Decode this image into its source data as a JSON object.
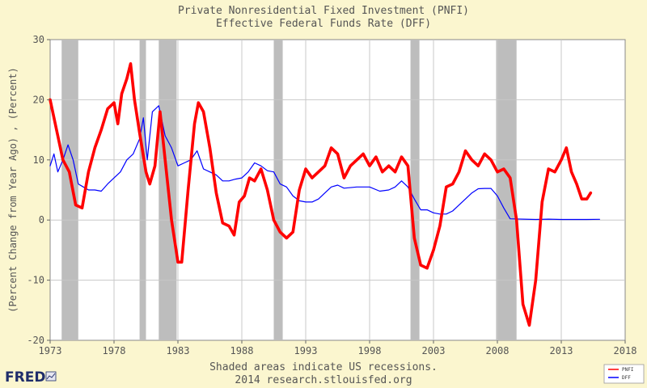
{
  "colors": {
    "background": "#fbf6cf",
    "plot_background": "#ffffff",
    "grid": "#c8c8c8",
    "recession": "#bdbdbd",
    "series_pnfi": "#ff0000",
    "series_dff": "#0000ff"
  },
  "footer": {
    "line1": "Shaded areas indicate US recessions.",
    "line2": "2014 research.stlouisfed.org"
  },
  "logo": {
    "text": "FRED",
    "icon": "chart-icon"
  },
  "chart_data": {
    "type": "line",
    "title": "Private Nonresidential Fixed Investment (PNFI)",
    "subtitle": "Effective Federal Funds Rate (DFF)",
    "xlabel": "",
    "ylabel": "(Percent Change from Year Ago) , (Percent)",
    "xlim": [
      1973,
      2018
    ],
    "ylim": [
      -20,
      30
    ],
    "xticks": [
      1973,
      1978,
      1983,
      1988,
      1993,
      1998,
      2003,
      2008,
      2013,
      2018
    ],
    "xtick_labels": [
      "1973",
      "1978",
      "1983",
      "1988",
      "1993",
      "1998",
      "2003",
      "2008",
      "2013",
      "2018"
    ],
    "yticks": [
      -20,
      -10,
      0,
      10,
      20,
      30
    ],
    "ytick_labels": [
      "-20",
      "-10",
      "0",
      "10",
      "20",
      "30"
    ],
    "grid": true,
    "legend": {
      "position": "bottom-right",
      "entries": [
        "PNFI",
        "DFF"
      ]
    },
    "recessions": [
      [
        1973.9,
        1975.2
      ],
      [
        1980.0,
        1980.5
      ],
      [
        1981.5,
        1982.9
      ],
      [
        1990.5,
        1991.2
      ],
      [
        2001.2,
        2001.9
      ],
      [
        2007.9,
        2009.5
      ]
    ],
    "series": [
      {
        "name": "PNFI",
        "color": "#ff0000",
        "points": [
          [
            1973.0,
            20
          ],
          [
            1973.5,
            15
          ],
          [
            1974.0,
            10
          ],
          [
            1974.5,
            8
          ],
          [
            1975.0,
            2.5
          ],
          [
            1975.5,
            2
          ],
          [
            1976.0,
            8
          ],
          [
            1976.5,
            12
          ],
          [
            1977.0,
            15
          ],
          [
            1977.5,
            18.5
          ],
          [
            1978.0,
            19.5
          ],
          [
            1978.3,
            16
          ],
          [
            1978.6,
            21
          ],
          [
            1979.0,
            23.5
          ],
          [
            1979.3,
            26
          ],
          [
            1979.6,
            20
          ],
          [
            1980.0,
            14.5
          ],
          [
            1980.5,
            8
          ],
          [
            1980.8,
            6
          ],
          [
            1981.2,
            9
          ],
          [
            1981.6,
            18
          ],
          [
            1982.0,
            10
          ],
          [
            1982.5,
            0
          ],
          [
            1983.0,
            -7
          ],
          [
            1983.3,
            -7
          ],
          [
            1983.8,
            5
          ],
          [
            1984.3,
            16
          ],
          [
            1984.6,
            19.5
          ],
          [
            1985.0,
            18
          ],
          [
            1985.5,
            12
          ],
          [
            1986.0,
            4.5
          ],
          [
            1986.5,
            -0.5
          ],
          [
            1987.0,
            -1
          ],
          [
            1987.4,
            -2.5
          ],
          [
            1987.8,
            3
          ],
          [
            1988.2,
            4
          ],
          [
            1988.6,
            7
          ],
          [
            1989.0,
            6.5
          ],
          [
            1989.5,
            8.5
          ],
          [
            1990.0,
            5
          ],
          [
            1990.5,
            0
          ],
          [
            1991.0,
            -2
          ],
          [
            1991.5,
            -3
          ],
          [
            1992.0,
            -2
          ],
          [
            1992.5,
            5
          ],
          [
            1993.0,
            8.5
          ],
          [
            1993.5,
            7
          ],
          [
            1994.0,
            8
          ],
          [
            1994.5,
            9
          ],
          [
            1995.0,
            12
          ],
          [
            1995.5,
            11
          ],
          [
            1996.0,
            7
          ],
          [
            1996.5,
            9
          ],
          [
            1997.0,
            10
          ],
          [
            1997.5,
            11
          ],
          [
            1998.0,
            9
          ],
          [
            1998.5,
            10.5
          ],
          [
            1999.0,
            8
          ],
          [
            1999.5,
            9
          ],
          [
            2000.0,
            8
          ],
          [
            2000.5,
            10.5
          ],
          [
            2001.0,
            9
          ],
          [
            2001.5,
            -3
          ],
          [
            2002.0,
            -7.5
          ],
          [
            2002.5,
            -8
          ],
          [
            2003.0,
            -5
          ],
          [
            2003.5,
            -1
          ],
          [
            2004.0,
            5.5
          ],
          [
            2004.5,
            6
          ],
          [
            2005.0,
            8
          ],
          [
            2005.5,
            11.5
          ],
          [
            2006.0,
            10
          ],
          [
            2006.5,
            9
          ],
          [
            2007.0,
            11
          ],
          [
            2007.5,
            10
          ],
          [
            2008.0,
            8
          ],
          [
            2008.5,
            8.5
          ],
          [
            2009.0,
            7
          ],
          [
            2009.5,
            0
          ],
          [
            2010.0,
            -14
          ],
          [
            2010.5,
            -17.5
          ],
          [
            2011.0,
            -10
          ],
          [
            2011.5,
            3
          ],
          [
            2012.0,
            8.5
          ],
          [
            2012.5,
            8
          ],
          [
            2013.0,
            10
          ],
          [
            2013.4,
            12
          ],
          [
            2013.8,
            8
          ],
          [
            2014.2,
            6
          ],
          [
            2014.6,
            3.5
          ],
          [
            2015.0,
            3.5
          ],
          [
            2015.3,
            4.5
          ]
        ]
      },
      {
        "name": "DFF",
        "color": "#0000ff",
        "points": [
          [
            1973.0,
            9
          ],
          [
            1973.3,
            11
          ],
          [
            1973.6,
            8
          ],
          [
            1974.0,
            10
          ],
          [
            1974.4,
            12.5
          ],
          [
            1974.8,
            10
          ],
          [
            1975.2,
            6
          ],
          [
            1975.6,
            5.5
          ],
          [
            1976.0,
            5
          ],
          [
            1976.5,
            5
          ],
          [
            1977.0,
            4.8
          ],
          [
            1977.5,
            6
          ],
          [
            1978.0,
            7
          ],
          [
            1978.5,
            8
          ],
          [
            1979.0,
            10
          ],
          [
            1979.5,
            11
          ],
          [
            1980.0,
            13.5
          ],
          [
            1980.3,
            17
          ],
          [
            1980.6,
            10
          ],
          [
            1981.0,
            18
          ],
          [
            1981.5,
            19
          ],
          [
            1982.0,
            14
          ],
          [
            1982.5,
            12
          ],
          [
            1983.0,
            9
          ],
          [
            1983.5,
            9.5
          ],
          [
            1984.0,
            10
          ],
          [
            1984.5,
            11.5
          ],
          [
            1985.0,
            8.5
          ],
          [
            1985.5,
            8
          ],
          [
            1986.0,
            7.5
          ],
          [
            1986.5,
            6.5
          ],
          [
            1987.0,
            6.5
          ],
          [
            1987.5,
            6.8
          ],
          [
            1988.0,
            7
          ],
          [
            1988.5,
            8
          ],
          [
            1989.0,
            9.5
          ],
          [
            1989.5,
            9
          ],
          [
            1990.0,
            8.2
          ],
          [
            1990.5,
            8
          ],
          [
            1991.0,
            6
          ],
          [
            1991.5,
            5.5
          ],
          [
            1992.0,
            4
          ],
          [
            1992.5,
            3.2
          ],
          [
            1993.0,
            3
          ],
          [
            1993.5,
            3
          ],
          [
            1994.0,
            3.5
          ],
          [
            1994.5,
            4.5
          ],
          [
            1995.0,
            5.5
          ],
          [
            1995.5,
            5.8
          ],
          [
            1996.0,
            5.3
          ],
          [
            1997.0,
            5.5
          ],
          [
            1998.0,
            5.5
          ],
          [
            1998.8,
            4.8
          ],
          [
            1999.5,
            5
          ],
          [
            2000.0,
            5.5
          ],
          [
            2000.5,
            6.5
          ],
          [
            2001.0,
            5.5
          ],
          [
            2001.5,
            3.5
          ],
          [
            2002.0,
            1.7
          ],
          [
            2002.5,
            1.7
          ],
          [
            2003.0,
            1.2
          ],
          [
            2003.5,
            1
          ],
          [
            2004.0,
            1
          ],
          [
            2004.5,
            1.5
          ],
          [
            2005.0,
            2.5
          ],
          [
            2005.5,
            3.5
          ],
          [
            2006.0,
            4.5
          ],
          [
            2006.5,
            5.2
          ],
          [
            2007.0,
            5.25
          ],
          [
            2007.5,
            5.25
          ],
          [
            2008.0,
            4
          ],
          [
            2008.5,
            2
          ],
          [
            2009.0,
            0.2
          ],
          [
            2010.0,
            0.15
          ],
          [
            2011.0,
            0.1
          ],
          [
            2012.0,
            0.15
          ],
          [
            2013.0,
            0.1
          ],
          [
            2014.0,
            0.1
          ],
          [
            2015.0,
            0.1
          ],
          [
            2016.0,
            0.12
          ]
        ]
      }
    ]
  }
}
